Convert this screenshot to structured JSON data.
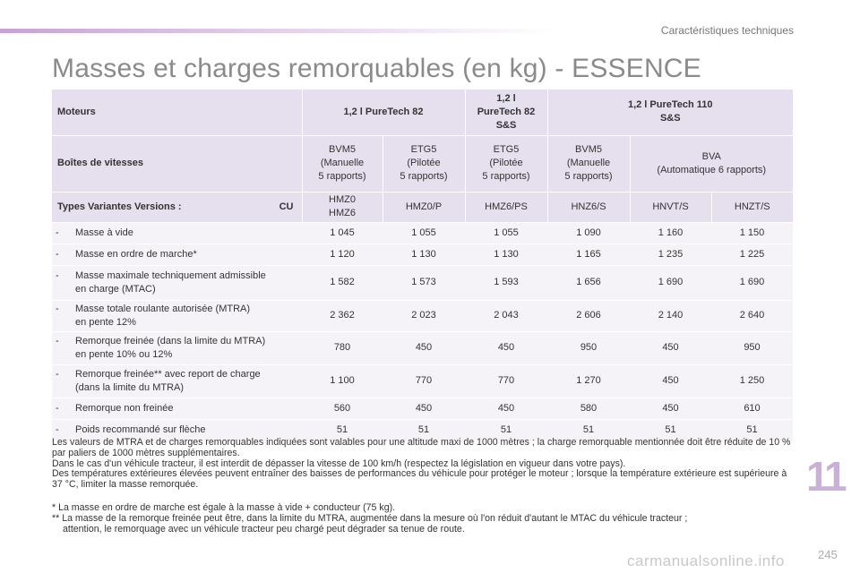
{
  "header": {
    "section": "Caractéristiques techniques"
  },
  "title": "Masses et charges remorquables (en kg) - ESSENCE",
  "table": {
    "moteurs_label": "Moteurs",
    "engine1": "1,2 l PureTech 82",
    "engine2_l1": "1,2 l",
    "engine2_l2": "PureTech 82",
    "engine2_l3": "S&S",
    "engine3_l1": "1,2 l PureTech 110",
    "engine3_l2": "S&S",
    "boites_label": "Boîtes de vitesses",
    "gearboxes": [
      {
        "l1": "BVM5",
        "l2": "(Manuelle",
        "l3": "5 rapports)"
      },
      {
        "l1": "ETG5",
        "l2": "(Pilotée",
        "l3": "5 rapports)"
      },
      {
        "l1": "ETG5",
        "l2": "(Pilotée",
        "l3": "5 rapports)"
      },
      {
        "l1": "BVM5",
        "l2": "(Manuelle",
        "l3": "5 rapports)"
      },
      {
        "l1": "BVA",
        "l2": "(Automatique 6 rapports)",
        "l3": ""
      }
    ],
    "types_label": "Types Variantes Versions :",
    "cu_label": "CU",
    "types": [
      {
        "l1": "HMZ0",
        "l2": "HMZ6"
      },
      {
        "l1": "HMZ0/P",
        "l2": ""
      },
      {
        "l1": "HMZ6/PS",
        "l2": ""
      },
      {
        "l1": "HNZ6/S",
        "l2": ""
      },
      {
        "l1": "HNVT/S",
        "l2": ""
      },
      {
        "l1": "HNZT/S",
        "l2": ""
      }
    ],
    "rows": [
      {
        "dash": "-",
        "l1": "Masse à vide",
        "l2": "",
        "values": [
          "1 045",
          "1 055",
          "1 055",
          "1 090",
          "1 160",
          "1 150"
        ]
      },
      {
        "dash": "-",
        "l1": "Masse en ordre de marche*",
        "l2": "",
        "values": [
          "1 120",
          "1 130",
          "1 130",
          "1 165",
          "1 235",
          "1 225"
        ]
      },
      {
        "dash": "-",
        "l1": "Masse maximale techniquement admissible",
        "l2": "en charge (MTAC)",
        "values": [
          "1 582",
          "1 573",
          "1 593",
          "1 656",
          "1 690",
          "1 690"
        ]
      },
      {
        "dash": "-",
        "l1": "Masse totale roulante autorisée (MTRA)",
        "l2": "en pente 12%",
        "values": [
          "2 362",
          "2 023",
          "2 043",
          "2 606",
          "2 140",
          "2 640"
        ]
      },
      {
        "dash": "-",
        "l1": "Remorque freinée (dans la limite du MTRA)",
        "l2": "en pente 10% ou 12%",
        "values": [
          "780",
          "450",
          "450",
          "950",
          "450",
          "950"
        ]
      },
      {
        "dash": "-",
        "l1": "Remorque freinée** avec report de charge",
        "l2": "(dans la limite du MTRA)",
        "values": [
          "1 100",
          "770",
          "770",
          "1 270",
          "450",
          "1 250"
        ]
      },
      {
        "dash": "-",
        "l1": "Remorque non freinée",
        "l2": "",
        "values": [
          "560",
          "450",
          "450",
          "580",
          "450",
          "610"
        ]
      },
      {
        "dash": "-",
        "l1": "Poids recommandé sur flèche",
        "l2": "",
        "values": [
          "51",
          "51",
          "51",
          "51",
          "51",
          "51"
        ]
      }
    ]
  },
  "notes": [
    "Les valeurs de MTRA et de charges remorquables indiquées sont valables pour une altitude maxi de 1000 mètres ; la charge remorquable mentionnée doit être réduite de 10 % par paliers de 1000 mètres supplémentaires.",
    "Dans le cas d'un véhicule tracteur, il est interdit de dépasser la vitesse de 100 km/h (respectez la législation en vigueur dans votre pays).",
    "Des températures extérieures élevées peuvent entraîner des baisses de performances du véhicule pour protéger le moteur ; lorsque la température extérieure est supérieure à 37 °C, limiter la masse remorquée."
  ],
  "footnotes": {
    "f1": "* La masse en ordre de marche est égale à la masse à vide + conducteur (75 kg).",
    "f2": "** La masse de la remorque freinée peut être, dans la limite du MTRA, augmentée dans la mesure où l'on réduit d'autant le MTAC du véhicule tracteur ;",
    "f2b": "attention, le remorquage avec un véhicule tracteur peu chargé peut dégrader sa tenue de route."
  },
  "chapter_number": "11",
  "page_number": "245",
  "watermark": "carmanualsonline.info",
  "colors": {
    "header_bg": "#e6dfee",
    "row_bg": "#f6f3f8",
    "accent": "#c9b0d6"
  }
}
